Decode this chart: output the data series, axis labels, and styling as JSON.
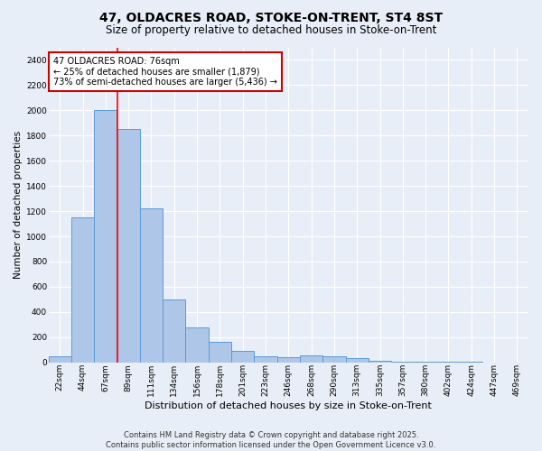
{
  "title_line1": "47, OLDACRES ROAD, STOKE-ON-TRENT, ST4 8ST",
  "title_line2": "Size of property relative to detached houses in Stoke-on-Trent",
  "xlabel": "Distribution of detached houses by size in Stoke-on-Trent",
  "ylabel": "Number of detached properties",
  "categories": [
    "22sqm",
    "44sqm",
    "67sqm",
    "89sqm",
    "111sqm",
    "134sqm",
    "156sqm",
    "178sqm",
    "201sqm",
    "223sqm",
    "246sqm",
    "268sqm",
    "290sqm",
    "313sqm",
    "335sqm",
    "357sqm",
    "380sqm",
    "402sqm",
    "424sqm",
    "447sqm",
    "469sqm"
  ],
  "values": [
    50,
    1150,
    2000,
    1850,
    1225,
    500,
    275,
    160,
    90,
    50,
    40,
    55,
    45,
    30,
    15,
    8,
    5,
    3,
    2,
    1,
    1
  ],
  "bar_color": "#aec6e8",
  "bar_edge_color": "#5b9bd5",
  "background_color": "#e8eef7",
  "grid_color": "#ffffff",
  "red_line_x": 2.52,
  "annotation_text": "47 OLDACRES ROAD: 76sqm\n← 25% of detached houses are smaller (1,879)\n73% of semi-detached houses are larger (5,436) →",
  "annotation_box_color": "#ffffff",
  "annotation_border_color": "#cc0000",
  "ylim": [
    0,
    2500
  ],
  "yticks": [
    0,
    200,
    400,
    600,
    800,
    1000,
    1200,
    1400,
    1600,
    1800,
    2000,
    2200,
    2400
  ],
  "title_fontsize": 10,
  "subtitle_fontsize": 8.5,
  "ylabel_fontsize": 7.5,
  "xlabel_fontsize": 8,
  "tick_fontsize": 6.5,
  "annotation_fontsize": 7,
  "footer_fontsize": 6,
  "footer_line1": "Contains HM Land Registry data © Crown copyright and database right 2025.",
  "footer_line2": "Contains public sector information licensed under the Open Government Licence v3.0."
}
